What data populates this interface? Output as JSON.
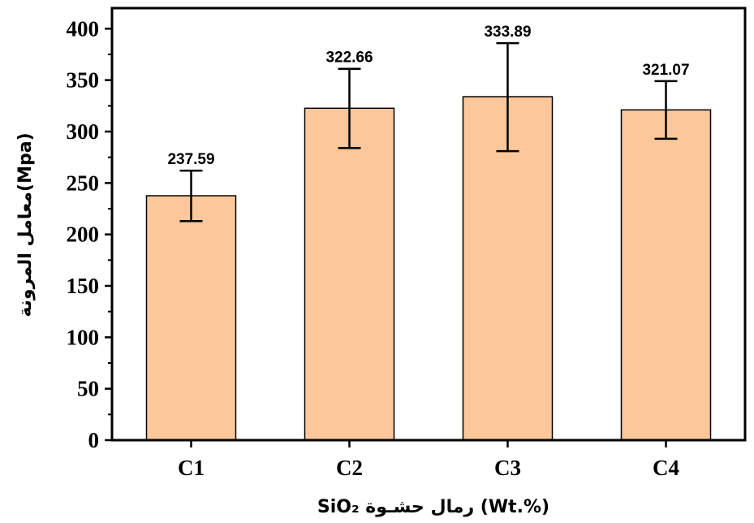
{
  "chart_data": {
    "type": "bar",
    "categories": [
      "C1",
      "C2",
      "C3",
      "C4"
    ],
    "values": [
      237.59,
      322.66,
      333.89,
      321.07
    ],
    "error_low": [
      213,
      284,
      281,
      293
    ],
    "error_high": [
      262,
      361,
      386,
      349
    ],
    "data_labels": [
      "237.59",
      "322.66",
      "333.89",
      "321.07"
    ],
    "yticks": [
      0,
      50,
      100,
      150,
      200,
      250,
      300,
      350,
      400
    ],
    "ylim": [
      0,
      420
    ],
    "xlabel": "SiO₂ رمال حشـوة (Wt.%)",
    "ylabel": "معامل المرونة(Mpa)",
    "bar_color": "#fcc79a",
    "bar_edge_color": "#000000",
    "grid": false
  }
}
